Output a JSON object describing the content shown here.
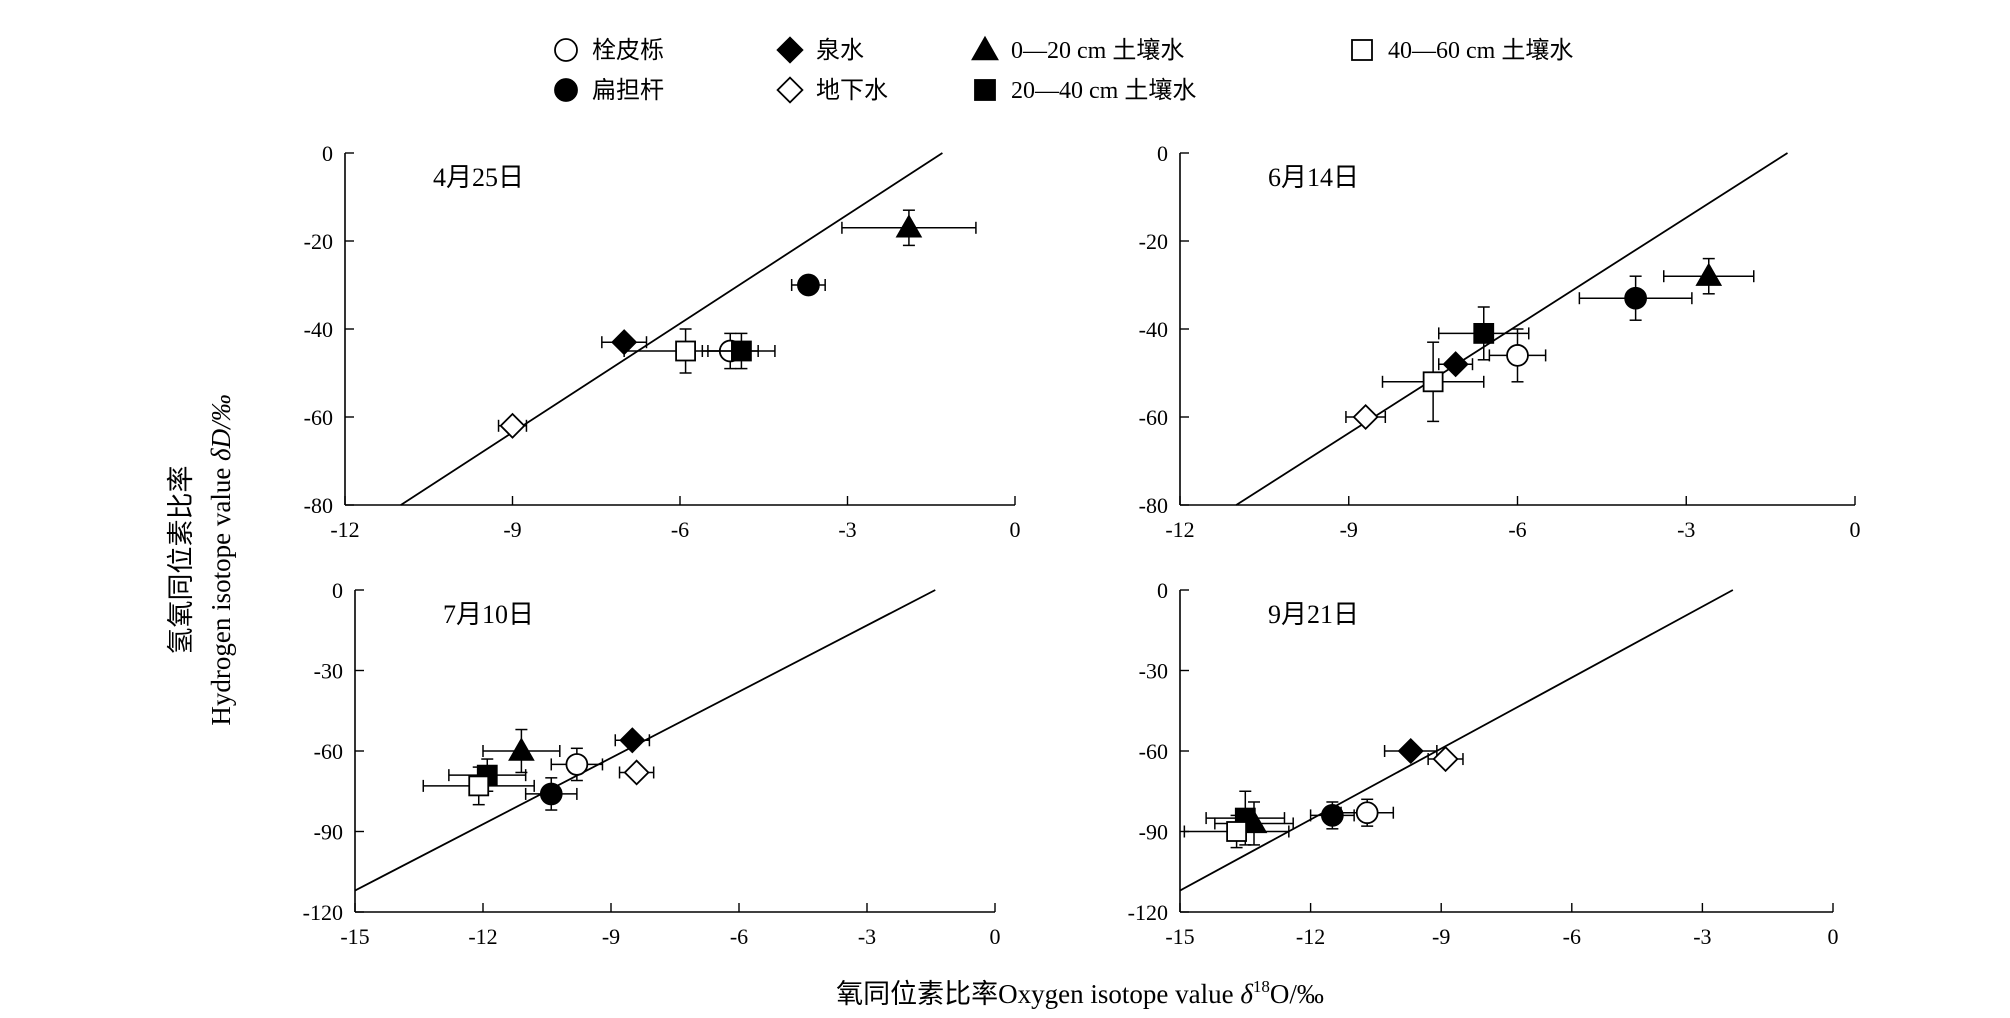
{
  "legend": {
    "items": [
      {
        "label": "栓皮栎",
        "marker": "circle-open"
      },
      {
        "label": "泉水",
        "marker": "diamond-filled"
      },
      {
        "label": "0—20 cm 土壤水",
        "marker": "triangle-filled"
      },
      {
        "label": "40—60 cm 土壤水",
        "marker": "square-open"
      },
      {
        "label": "扁担杆",
        "marker": "circle-filled"
      },
      {
        "label": "地下水",
        "marker": "diamond-open"
      },
      {
        "label": "20—40 cm 土壤水",
        "marker": "square-filled"
      }
    ]
  },
  "axes": {
    "ylabel_zh": "氢氧同位素比率",
    "ylabel_en_prefix": "Hydrogen isotope value ",
    "ylabel_en_symbol": "δD/‰",
    "xlabel_zh": "氧同位素比率",
    "xlabel_en_prefix": "Oxygen isotope value ",
    "xlabel_en_delta": "δ",
    "xlabel_en_sup": "18",
    "xlabel_en_suffix": "O/‰"
  },
  "chart_data": [
    {
      "type": "scatter",
      "title": "4月25日",
      "xlim": [
        -12,
        0
      ],
      "ylim": [
        -80,
        0
      ],
      "xticks": [
        "-12",
        "-9",
        "-6",
        "-3",
        "0"
      ],
      "yticks": [
        "0",
        "-20",
        "-40",
        "-60",
        "-80"
      ],
      "line": {
        "x1": -11,
        "y1": -80,
        "x2": -1.3,
        "y2": 0
      },
      "points": [
        {
          "series": "栓皮栎",
          "x": -5.1,
          "y": -45,
          "xerr": 0.5,
          "yerr": 4
        },
        {
          "series": "扁担杆",
          "x": -3.7,
          "y": -30,
          "xerr": 0.3,
          "yerr": 1.5
        },
        {
          "series": "泉水",
          "x": -7.0,
          "y": -43,
          "xerr": 0.4,
          "yerr": 1
        },
        {
          "series": "地下水",
          "x": -9.0,
          "y": -62,
          "xerr": 0.25,
          "yerr": 1
        },
        {
          "series": "0—20 cm 土壤水",
          "x": -1.9,
          "y": -17,
          "xerr": 1.2,
          "yerr": 4
        },
        {
          "series": "20—40 cm 土壤水",
          "x": -4.9,
          "y": -45,
          "xerr": 0.6,
          "yerr": 4
        },
        {
          "series": "40—60 cm 土壤水",
          "x": -5.9,
          "y": -45,
          "xerr": 1.1,
          "yerr": 5
        }
      ]
    },
    {
      "type": "scatter",
      "title": "6月14日",
      "xlim": [
        -12,
        0
      ],
      "ylim": [
        -80,
        0
      ],
      "xticks": [
        "-12",
        "-9",
        "-6",
        "-3",
        "0"
      ],
      "yticks": [
        "0",
        "-20",
        "-40",
        "-60",
        "-80"
      ],
      "line": {
        "x1": -11,
        "y1": -80,
        "x2": -1.2,
        "y2": 0
      },
      "points": [
        {
          "series": "栓皮栎",
          "x": -6.0,
          "y": -46,
          "xerr": 0.5,
          "yerr": 6
        },
        {
          "series": "扁担杆",
          "x": -3.9,
          "y": -33,
          "xerr": 1.0,
          "yerr": 5
        },
        {
          "series": "泉水",
          "x": -7.1,
          "y": -48,
          "xerr": 0.3,
          "yerr": 1
        },
        {
          "series": "地下水",
          "x": -8.7,
          "y": -60,
          "xerr": 0.35,
          "yerr": 1
        },
        {
          "series": "0—20 cm 土壤水",
          "x": -2.6,
          "y": -28,
          "xerr": 0.8,
          "yerr": 4
        },
        {
          "series": "20—40 cm 土壤水",
          "x": -6.6,
          "y": -41,
          "xerr": 0.8,
          "yerr": 6
        },
        {
          "series": "40—60 cm 土壤水",
          "x": -7.5,
          "y": -52,
          "xerr": 0.9,
          "yerr": 9
        }
      ]
    },
    {
      "type": "scatter",
      "title": "7月10日",
      "xlim": [
        -15,
        0
      ],
      "ylim": [
        -120,
        0
      ],
      "xticks": [
        "-15",
        "-12",
        "-9",
        "-6",
        "-3",
        "0"
      ],
      "yticks": [
        "0",
        "-30",
        "-60",
        "-90",
        "-120"
      ],
      "line": {
        "x1": -15,
        "y1": -112,
        "x2": -1.4,
        "y2": 0
      },
      "points": [
        {
          "series": "栓皮栎",
          "x": -9.8,
          "y": -65,
          "xerr": 0.6,
          "yerr": 6
        },
        {
          "series": "扁担杆",
          "x": -10.4,
          "y": -76,
          "xerr": 0.6,
          "yerr": 6
        },
        {
          "series": "泉水",
          "x": -8.5,
          "y": -56,
          "xerr": 0.4,
          "yerr": 1
        },
        {
          "series": "地下水",
          "x": -8.4,
          "y": -68,
          "xerr": 0.4,
          "yerr": 1
        },
        {
          "series": "0—20 cm 土壤水",
          "x": -11.1,
          "y": -60,
          "xerr": 0.9,
          "yerr": 8
        },
        {
          "series": "20—40 cm 土壤水",
          "x": -11.9,
          "y": -69,
          "xerr": 0.9,
          "yerr": 6
        },
        {
          "series": "40—60 cm 土壤水",
          "x": -12.1,
          "y": -73,
          "xerr": 1.3,
          "yerr": 7
        }
      ]
    },
    {
      "type": "scatter",
      "title": "9月21日",
      "xlim": [
        -15,
        0
      ],
      "ylim": [
        -120,
        0
      ],
      "xticks": [
        "-15",
        "-12",
        "-9",
        "-6",
        "-3",
        "0"
      ],
      "yticks": [
        "0",
        "-30",
        "-60",
        "-90",
        "-120"
      ],
      "line": {
        "x1": -15,
        "y1": -112,
        "x2": -2.3,
        "y2": 0
      },
      "points": [
        {
          "series": "栓皮栎",
          "x": -10.7,
          "y": -83,
          "xerr": 0.6,
          "yerr": 5
        },
        {
          "series": "扁担杆",
          "x": -11.5,
          "y": -84,
          "xerr": 0.5,
          "yerr": 5
        },
        {
          "series": "泉水",
          "x": -9.7,
          "y": -60,
          "xerr": 0.6,
          "yerr": 1
        },
        {
          "series": "地下水",
          "x": -8.9,
          "y": -63,
          "xerr": 0.4,
          "yerr": 1
        },
        {
          "series": "0—20 cm 土壤水",
          "x": -13.3,
          "y": -87,
          "xerr": 0.9,
          "yerr": 8
        },
        {
          "series": "20—40 cm 土壤水",
          "x": -13.5,
          "y": -85,
          "xerr": 0.9,
          "yerr": 10
        },
        {
          "series": "40—60 cm 土壤水",
          "x": -13.7,
          "y": -90,
          "xerr": 1.2,
          "yerr": 6
        }
      ]
    }
  ]
}
